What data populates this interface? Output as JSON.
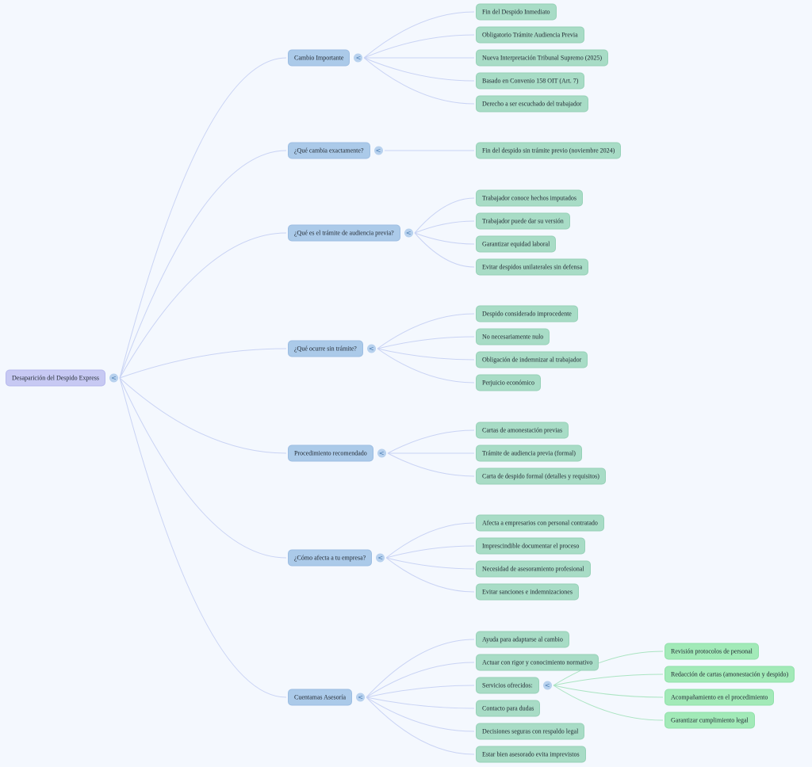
{
  "palette": {
    "background": "#f4f8fe",
    "root_fill": "#c7c9f3",
    "branch_fill": "#abcae9",
    "leaf_fill": "#a8dcc6",
    "subleaf_fill": "#a2eab8",
    "link_blue": "#c9d3f4",
    "link_green": "#abe4c2",
    "text_color": "#222a33",
    "collapse_fill": "#b7d1ee",
    "collapse_glyph_color": "#4d7fb3"
  },
  "collapse_glyph": "<",
  "mindmap": {
    "root": {
      "label": "Desaparición del Despido Express",
      "children": [
        {
          "label": "Cambio Importante",
          "children": [
            {
              "label": "Fin del Despido Inmediato"
            },
            {
              "label": "Obligatorio Trámite Audiencia Previa"
            },
            {
              "label": "Nueva Interpretación Tribunal Supremo (2025)"
            },
            {
              "label": "Basado en Convenio 158 OIT (Art. 7)"
            },
            {
              "label": "Derecho a ser escuchado del trabajador"
            }
          ]
        },
        {
          "label": "¿Qué cambia exactamente?",
          "children": [
            {
              "label": "Fin del despido sin trámite previo (noviembre 2024)"
            }
          ]
        },
        {
          "label": "¿Qué es el trámite de audiencia previa?",
          "children": [
            {
              "label": "Trabajador conoce hechos imputados"
            },
            {
              "label": "Trabajador puede dar su versión"
            },
            {
              "label": "Garantizar equidad laboral"
            },
            {
              "label": "Evitar despidos unilaterales sin defensa"
            }
          ]
        },
        {
          "label": "¿Qué ocurre sin trámite?",
          "children": [
            {
              "label": "Despido considerado improcedente"
            },
            {
              "label": "No necesariamente nulo"
            },
            {
              "label": "Obligación de indemnizar al trabajador"
            },
            {
              "label": "Perjuicio económico"
            }
          ]
        },
        {
          "label": "Procedimiento recomendado",
          "children": [
            {
              "label": "Cartas de amonestación previas"
            },
            {
              "label": "Trámite de audiencia previa (formal)"
            },
            {
              "label": "Carta de despido formal (detalles y requisitos)"
            }
          ]
        },
        {
          "label": "¿Cómo afecta a tu empresa?",
          "children": [
            {
              "label": "Afecta a empresarios con personal contratado"
            },
            {
              "label": "Imprescindible documentar el proceso"
            },
            {
              "label": "Necesidad de asesoramiento profesional"
            },
            {
              "label": "Evitar sanciones e indemnizaciones"
            }
          ]
        },
        {
          "label": "Cuentamas Asesoría",
          "children": [
            {
              "label": "Ayuda para adaptarse al cambio"
            },
            {
              "label": "Actuar con rigor y conocimiento normativo"
            },
            {
              "label": "Servicios ofrecidos:",
              "children": [
                {
                  "label": "Revisión protocolos de personal"
                },
                {
                  "label": "Redacción de cartas (amonestación y despido)"
                },
                {
                  "label": "Acompañamiento en el procedimiento"
                },
                {
                  "label": "Garantizar cumplimiento legal"
                }
              ]
            },
            {
              "label": "Contacto para dudas"
            },
            {
              "label": "Decisiones seguras con respaldo legal"
            },
            {
              "label": "Estar bien asesorado evita imprevistos"
            }
          ]
        }
      ]
    }
  }
}
